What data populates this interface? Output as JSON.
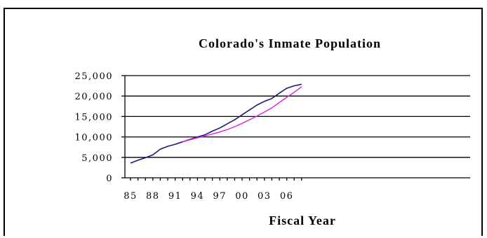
{
  "chart_data": {
    "type": "line",
    "title": "Colorado's Inmate Population",
    "xlabel": "Fiscal Year",
    "ylabel": "",
    "ylim": [
      0,
      25000
    ],
    "yticks": [
      0,
      5000,
      10000,
      15000,
      20000,
      25000
    ],
    "ytick_labels": [
      "0",
      "5,000",
      "10,000",
      "15,000",
      "20,000",
      "25,000"
    ],
    "xtick_labels": [
      "85",
      "88",
      "91",
      "94",
      "97",
      "00",
      "03",
      "06"
    ],
    "x": [
      "85",
      "86",
      "87",
      "88",
      "89",
      "90",
      "91",
      "92",
      "93",
      "94",
      "95",
      "96",
      "97",
      "98",
      "99",
      "00",
      "01",
      "02",
      "03",
      "04",
      "05",
      "06",
      "07",
      "08"
    ],
    "grid": "horizontal",
    "legend": "none",
    "series": [
      {
        "color": "#1a1a7a",
        "values": [
          3600,
          4300,
          4900,
          5600,
          7000,
          7700,
          8200,
          8800,
          9400,
          10000,
          10500,
          11400,
          12200,
          13200,
          14200,
          15400,
          16600,
          17800,
          18700,
          19400,
          20700,
          21900,
          22500,
          22900
        ]
      },
      {
        "color": "#e020d8",
        "values": [
          null,
          null,
          null,
          null,
          null,
          null,
          null,
          8800,
          9300,
          9800,
          10200,
          10700,
          11200,
          11800,
          12500,
          13300,
          14200,
          15100,
          16100,
          17100,
          18400,
          19700,
          20900,
          22300
        ]
      }
    ]
  }
}
